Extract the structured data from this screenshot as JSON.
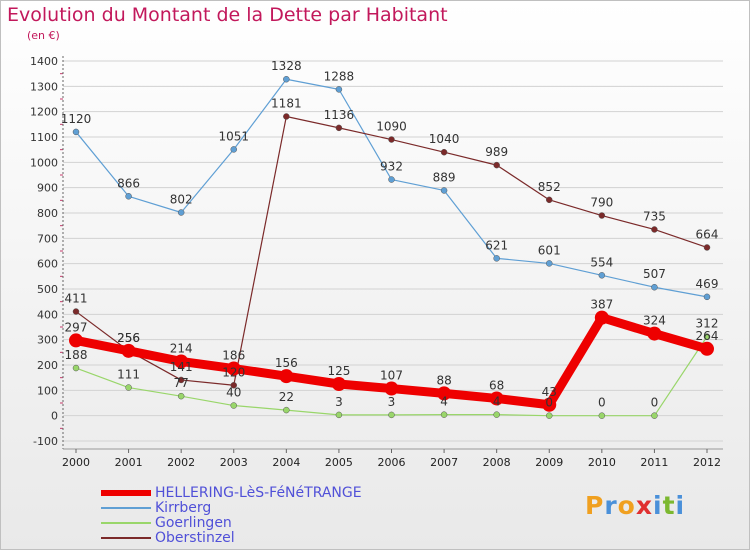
{
  "title": "Evolution du Montant de la Dette par Habitant",
  "subtitle": "(en €)",
  "brand": {
    "letters": [
      "P",
      "r",
      "o",
      "x",
      "i",
      "t",
      "i"
    ],
    "colors": [
      "#f0a020",
      "#4a90d9",
      "#f0a020",
      "#e03030",
      "#4a90d9",
      "#7cb830",
      "#4a90d9"
    ]
  },
  "chart_data": {
    "type": "line",
    "title": "Evolution du Montant de la Dette par Habitant",
    "ylabel": "(en €)",
    "xlabel": "",
    "x": [
      "2000",
      "2001",
      "2002",
      "2003",
      "2004",
      "2005",
      "2006",
      "2007",
      "2008",
      "2009",
      "2010",
      "2011",
      "2012"
    ],
    "ylim": [
      -100,
      1400
    ],
    "yticks": [
      -100,
      0,
      100,
      200,
      300,
      400,
      500,
      600,
      700,
      800,
      900,
      1000,
      1100,
      1200,
      1300,
      1400
    ],
    "grid": "horizontal",
    "legend_position": "bottom-left",
    "series": [
      {
        "name": "HELLERING-LèS-FéNéTRANGE",
        "color": "#ee0000",
        "thick": true,
        "values": [
          297,
          256,
          214,
          186,
          156,
          125,
          107,
          88,
          68,
          43,
          387,
          324,
          264
        ],
        "labels": [
          "297",
          "256",
          "214",
          "186",
          "156",
          "125",
          "107",
          "88",
          "68",
          "43",
          "387",
          "324",
          "264"
        ]
      },
      {
        "name": "Kirrberg",
        "color": "#5f9fd4",
        "thick": false,
        "values": [
          1120,
          866,
          802,
          1051,
          1328,
          1288,
          932,
          889,
          621,
          601,
          554,
          507,
          469
        ],
        "labels": [
          "1120",
          "866",
          "802",
          "1051",
          "1328",
          "1288",
          "932",
          "889",
          "621",
          "601",
          "554",
          "507",
          "469"
        ]
      },
      {
        "name": "Goerlingen",
        "color": "#99d66a",
        "thick": false,
        "values": [
          188,
          111,
          77,
          40,
          22,
          3,
          3,
          4,
          4,
          0,
          0,
          0,
          312
        ],
        "labels": [
          "188",
          "111",
          "77",
          "40",
          "22",
          "3",
          "3",
          "4",
          "4",
          "0",
          "0",
          "0",
          "312"
        ]
      },
      {
        "name": "Oberstinzel",
        "color": "#7b2a2a",
        "thick": false,
        "values": [
          411,
          256,
          141,
          120,
          1181,
          1136,
          1090,
          1040,
          989,
          852,
          790,
          735,
          664
        ],
        "labels": [
          "411",
          "256",
          "141",
          "120",
          "1181",
          "1136",
          "1090",
          "1040",
          "989",
          "852",
          "790",
          "735",
          "664"
        ]
      }
    ]
  }
}
